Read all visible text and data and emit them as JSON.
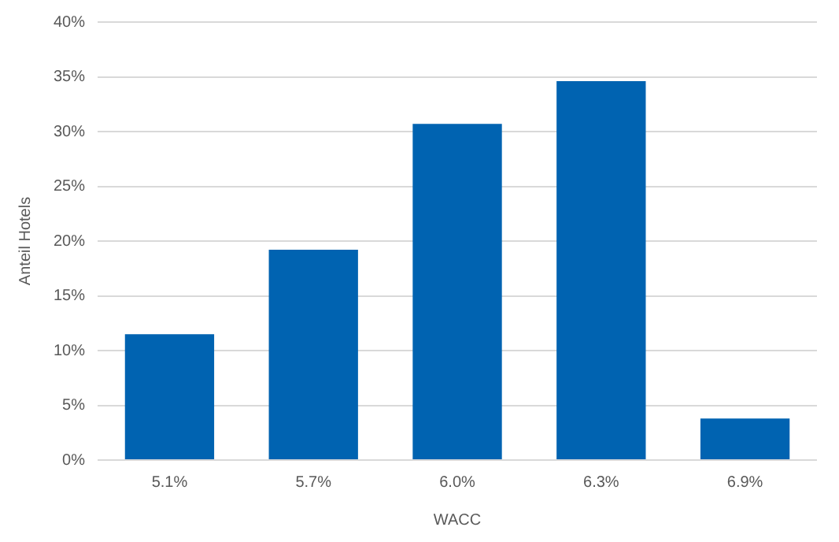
{
  "chart_data": {
    "type": "bar",
    "xlabel": "WACC",
    "ylabel": "Anteil Hotels",
    "categories": [
      "5.1%",
      "5.7%",
      "6.0%",
      "6.3%",
      "6.9%"
    ],
    "values": [
      11.5,
      19.2,
      30.7,
      34.6,
      3.8
    ],
    "color": "#0063b1",
    "ylim": [
      0,
      40
    ],
    "yticks": [
      {
        "value": 0,
        "label": "0%"
      },
      {
        "value": 5,
        "label": "5%"
      },
      {
        "value": 10,
        "label": "10%"
      },
      {
        "value": 15,
        "label": "15%"
      },
      {
        "value": 20,
        "label": "20%"
      },
      {
        "value": 25,
        "label": "25%"
      },
      {
        "value": 30,
        "label": "30%"
      },
      {
        "value": 35,
        "label": "35%"
      },
      {
        "value": 40,
        "label": "40%"
      }
    ],
    "grid": "y",
    "legend": false
  }
}
